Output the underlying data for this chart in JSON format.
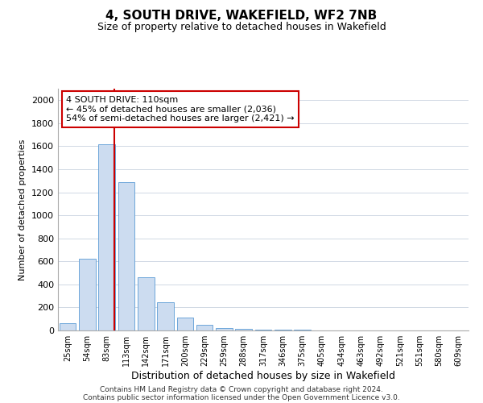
{
  "title": "4, SOUTH DRIVE, WAKEFIELD, WF2 7NB",
  "subtitle": "Size of property relative to detached houses in Wakefield",
  "xlabel": "Distribution of detached houses by size in Wakefield",
  "ylabel": "Number of detached properties",
  "categories": [
    "25sqm",
    "54sqm",
    "83sqm",
    "113sqm",
    "142sqm",
    "171sqm",
    "200sqm",
    "229sqm",
    "259sqm",
    "288sqm",
    "317sqm",
    "346sqm",
    "375sqm",
    "405sqm",
    "434sqm",
    "463sqm",
    "492sqm",
    "521sqm",
    "551sqm",
    "580sqm",
    "609sqm"
  ],
  "values": [
    65,
    620,
    1620,
    1290,
    460,
    245,
    115,
    50,
    20,
    12,
    8,
    5,
    4,
    3,
    2,
    2,
    1,
    1,
    1,
    1,
    1
  ],
  "bar_color_normal": "#ccdcf0",
  "bar_color_highlight": "#a8c4e0",
  "bar_outline_color": "#5b9bd5",
  "highlight_index": 2,
  "annotation_text": "4 SOUTH DRIVE: 110sqm\n← 45% of detached houses are smaller (2,036)\n54% of semi-detached houses are larger (2,421) →",
  "annotation_box_color": "#ffffff",
  "annotation_box_edge": "#cc0000",
  "vline_color": "#cc0000",
  "vline_x": 2.4,
  "ylim": [
    0,
    2100
  ],
  "yticks": [
    0,
    200,
    400,
    600,
    800,
    1000,
    1200,
    1400,
    1600,
    1800,
    2000
  ],
  "footer_line1": "Contains HM Land Registry data © Crown copyright and database right 2024.",
  "footer_line2": "Contains public sector information licensed under the Open Government Licence v3.0.",
  "bg_color": "#ffffff",
  "grid_color": "#d0d8e4"
}
